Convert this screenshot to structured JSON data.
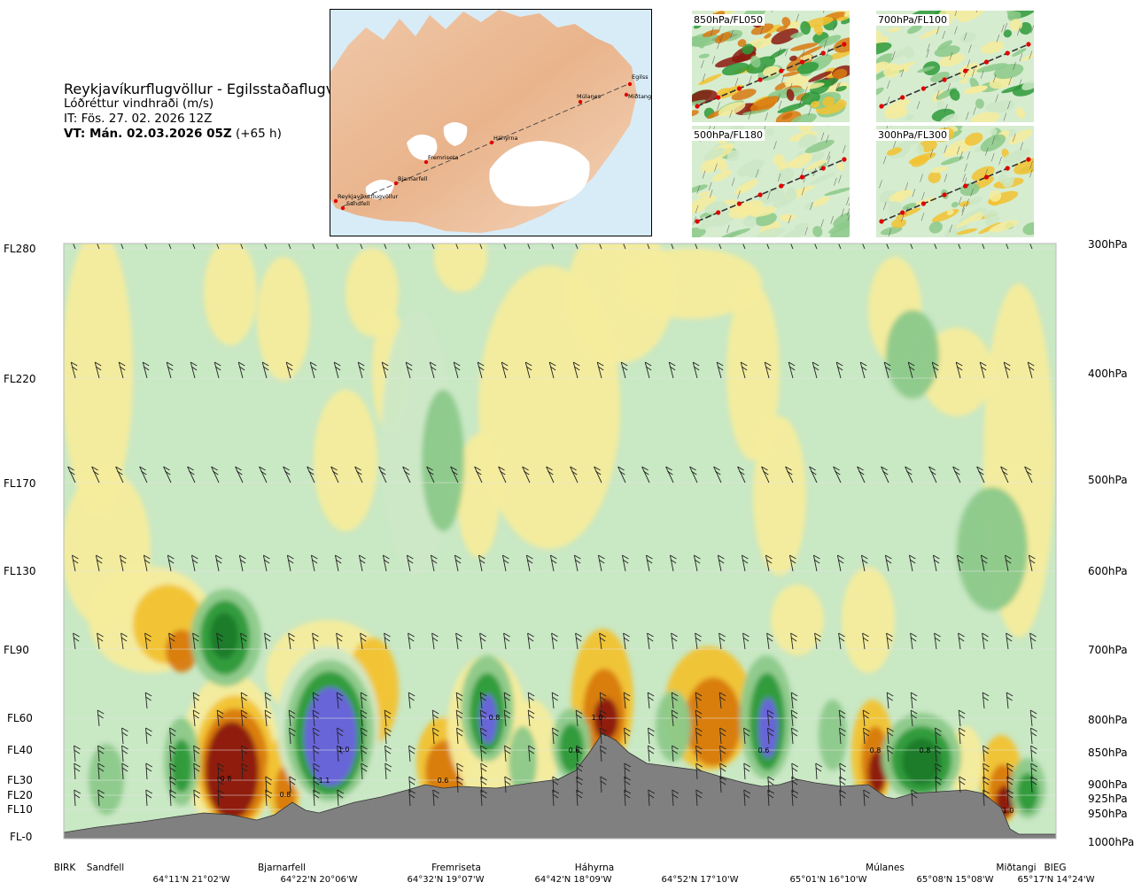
{
  "header": {
    "route": "Reykjavíkurflugvöllur - Egilsstaðaflugvöllur",
    "variable": "Lóðréttur vindhraði (m/s)",
    "issue": "IT: Fös. 27. 02. 2026 12Z",
    "valid_bold": "VT: Mán. 02.03.2026 05Z",
    "valid_lead": " (+65 h)"
  },
  "route_map": {
    "waypoints": [
      "Reykjavíkurflugvöllur",
      "Sandfell",
      "Bjarnarfell",
      "Fremriseta",
      "Háhyrna",
      "Múlanes",
      "Egilss",
      "Miðtangi"
    ]
  },
  "mini_maps": [
    {
      "label": "850hPa/FL050"
    },
    {
      "label": "700hPa/FL100"
    },
    {
      "label": "500hPa/FL180"
    },
    {
      "label": "300hPa/FL300"
    }
  ],
  "flight_levels": [
    "FL280",
    "FL220",
    "FL170",
    "FL130",
    "FL90",
    "FL60",
    "FL40",
    "FL30",
    "FL20",
    "FL10",
    "FL-0"
  ],
  "pressure_levels": [
    "300hPa",
    "400hPa",
    "500hPa",
    "600hPa",
    "700hPa",
    "800hPa",
    "850hPa",
    "900hPa",
    "925hPa",
    "950hPa",
    "1000hPa"
  ],
  "stations": [
    "BIRK",
    "Sandfell",
    "Bjarnarfell",
    "Fremriseta",
    "Háhyrna",
    "Múlanes",
    "Miðtangi",
    "BIEG"
  ],
  "coordinates": [
    "64°11'N 21°02'W",
    "64°22'N 20°06'W",
    "64°32'N 19°07'W",
    "64°42'N 18°09'W",
    "64°52'N 17°10'W",
    "65°01'N 16°10'W",
    "65°08'N 15°08'W",
    "65°17'N 14°24'W"
  ],
  "colors": {
    "strong_down": "#8b1a10",
    "mod_down": "#d87a10",
    "weak_down": "#f2c230",
    "faint_down": "#f6ec9c",
    "faint_up": "#cde8c6",
    "weak_up": "#8cc98a",
    "mod_up": "#2e9a3a",
    "strong_up": "#1a7a2a",
    "max_up": "#6a62e0",
    "terrain": "#808080",
    "background": "#c9e8c4"
  },
  "chart_data": {
    "type": "heatmap",
    "title": "Lóðréttur vindhraði (m/s)",
    "y_left_ticks": [
      "FL280",
      "FL220",
      "FL170",
      "FL130",
      "FL90",
      "FL60",
      "FL40",
      "FL30",
      "FL20",
      "FL10",
      "FL-0"
    ],
    "y_right_ticks": [
      "300hPa",
      "400hPa",
      "500hPa",
      "600hPa",
      "700hPa",
      "800hPa",
      "850hPa",
      "900hPa",
      "925hPa",
      "950hPa",
      "1000hPa"
    ],
    "x_stations": [
      "BIRK",
      "Sandfell",
      "Bjarnarfell",
      "Fremriseta",
      "Háhyrna",
      "Múlanes",
      "Miðtangi",
      "BIEG"
    ],
    "x_coordinates": [
      "64°11'N 21°02'W",
      "64°22'N 20°06'W",
      "64°32'N 19°07'W",
      "64°42'N 18°09'W",
      "64°52'N 17°10'W",
      "65°01'N 16°10'W",
      "65°08'N 15°08'W",
      "65°17'N 14°24'W"
    ],
    "contour_labels": [
      "0.8",
      "1.1",
      "1.0",
      "0.8",
      "0.6",
      "0.8",
      "0.6",
      "1.0",
      "0.6",
      "0.8",
      "0.8",
      "1.0"
    ]
  }
}
